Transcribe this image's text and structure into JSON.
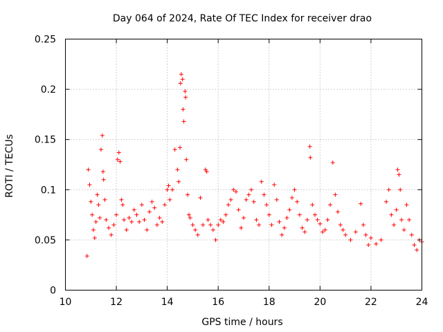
{
  "chart_data": {
    "type": "scatter",
    "title": "Day 064 of 2024, Rate Of TEC Index for receiver drao",
    "xlabel": "GPS time / hours",
    "ylabel": "ROTI / TECUs",
    "xlim": [
      10,
      24
    ],
    "ylim": [
      0,
      0.25
    ],
    "xticks": [
      10,
      12,
      14,
      16,
      18,
      20,
      22,
      24
    ],
    "xtick_labels": [
      "10",
      "12",
      "14",
      "16",
      "18",
      "20",
      "22",
      "24"
    ],
    "yticks": [
      0,
      0.05,
      0.1,
      0.15,
      0.2,
      0.25
    ],
    "ytick_labels": [
      "0",
      "0.05",
      "0.1",
      "0.15",
      "0.2",
      "0.25"
    ],
    "grid": true,
    "marker": "+",
    "color": "#ff0000",
    "series": [
      {
        "name": "ROTI",
        "points": [
          [
            10.85,
            0.034
          ],
          [
            10.9,
            0.12
          ],
          [
            10.95,
            0.105
          ],
          [
            11.0,
            0.088
          ],
          [
            11.05,
            0.075
          ],
          [
            11.1,
            0.06
          ],
          [
            11.15,
            0.052
          ],
          [
            11.2,
            0.068
          ],
          [
            11.25,
            0.095
          ],
          [
            11.3,
            0.085
          ],
          [
            11.35,
            0.072
          ],
          [
            11.4,
            0.14
          ],
          [
            11.45,
            0.154
          ],
          [
            11.48,
            0.118
          ],
          [
            11.5,
            0.11
          ],
          [
            11.55,
            0.09
          ],
          [
            11.6,
            0.07
          ],
          [
            11.7,
            0.062
          ],
          [
            11.8,
            0.055
          ],
          [
            11.9,
            0.065
          ],
          [
            12.0,
            0.075
          ],
          [
            12.05,
            0.13
          ],
          [
            12.1,
            0.137
          ],
          [
            12.15,
            0.128
          ],
          [
            12.2,
            0.09
          ],
          [
            12.25,
            0.085
          ],
          [
            12.3,
            0.07
          ],
          [
            12.4,
            0.06
          ],
          [
            12.5,
            0.072
          ],
          [
            12.6,
            0.068
          ],
          [
            12.7,
            0.08
          ],
          [
            12.8,
            0.075
          ],
          [
            12.9,
            0.068
          ],
          [
            13.0,
            0.085
          ],
          [
            13.1,
            0.07
          ],
          [
            13.2,
            0.06
          ],
          [
            13.3,
            0.078
          ],
          [
            13.4,
            0.088
          ],
          [
            13.5,
            0.082
          ],
          [
            13.6,
            0.065
          ],
          [
            13.7,
            0.072
          ],
          [
            13.8,
            0.068
          ],
          [
            13.9,
            0.085
          ],
          [
            14.0,
            0.1
          ],
          [
            14.05,
            0.104
          ],
          [
            14.1,
            0.09
          ],
          [
            14.2,
            0.1
          ],
          [
            14.3,
            0.14
          ],
          [
            14.4,
            0.12
          ],
          [
            14.45,
            0.108
          ],
          [
            14.5,
            0.142
          ],
          [
            14.52,
            0.206
          ],
          [
            14.55,
            0.215
          ],
          [
            14.6,
            0.21
          ],
          [
            14.62,
            0.18
          ],
          [
            14.65,
            0.168
          ],
          [
            14.7,
            0.198
          ],
          [
            14.72,
            0.192
          ],
          [
            14.75,
            0.13
          ],
          [
            14.8,
            0.095
          ],
          [
            14.85,
            0.075
          ],
          [
            14.9,
            0.072
          ],
          [
            15.0,
            0.065
          ],
          [
            15.1,
            0.06
          ],
          [
            15.2,
            0.055
          ],
          [
            15.3,
            0.092
          ],
          [
            15.4,
            0.065
          ],
          [
            15.5,
            0.12
          ],
          [
            15.55,
            0.118
          ],
          [
            15.6,
            0.07
          ],
          [
            15.7,
            0.065
          ],
          [
            15.8,
            0.06
          ],
          [
            15.9,
            0.05
          ],
          [
            16.0,
            0.065
          ],
          [
            16.1,
            0.07
          ],
          [
            16.2,
            0.068
          ],
          [
            16.3,
            0.075
          ],
          [
            16.4,
            0.085
          ],
          [
            16.5,
            0.09
          ],
          [
            16.6,
            0.1
          ],
          [
            16.7,
            0.098
          ],
          [
            16.8,
            0.08
          ],
          [
            16.9,
            0.062
          ],
          [
            17.0,
            0.072
          ],
          [
            17.1,
            0.09
          ],
          [
            17.2,
            0.095
          ],
          [
            17.3,
            0.1
          ],
          [
            17.4,
            0.088
          ],
          [
            17.5,
            0.07
          ],
          [
            17.6,
            0.065
          ],
          [
            17.7,
            0.108
          ],
          [
            17.8,
            0.095
          ],
          [
            17.9,
            0.085
          ],
          [
            18.0,
            0.075
          ],
          [
            18.1,
            0.065
          ],
          [
            18.2,
            0.105
          ],
          [
            18.3,
            0.09
          ],
          [
            18.4,
            0.068
          ],
          [
            18.5,
            0.055
          ],
          [
            18.6,
            0.062
          ],
          [
            18.7,
            0.072
          ],
          [
            18.8,
            0.08
          ],
          [
            18.9,
            0.092
          ],
          [
            19.0,
            0.1
          ],
          [
            19.1,
            0.088
          ],
          [
            19.2,
            0.075
          ],
          [
            19.3,
            0.062
          ],
          [
            19.4,
            0.058
          ],
          [
            19.5,
            0.07
          ],
          [
            19.6,
            0.143
          ],
          [
            19.62,
            0.132
          ],
          [
            19.7,
            0.085
          ],
          [
            19.8,
            0.075
          ],
          [
            19.9,
            0.07
          ],
          [
            20.0,
            0.066
          ],
          [
            20.1,
            0.058
          ],
          [
            20.2,
            0.06
          ],
          [
            20.3,
            0.07
          ],
          [
            20.4,
            0.085
          ],
          [
            20.5,
            0.127
          ],
          [
            20.6,
            0.095
          ],
          [
            20.7,
            0.078
          ],
          [
            20.8,
            0.065
          ],
          [
            20.9,
            0.06
          ],
          [
            21.0,
            0.055
          ],
          [
            21.2,
            0.05
          ],
          [
            21.4,
            0.058
          ],
          [
            21.6,
            0.086
          ],
          [
            21.7,
            0.065
          ],
          [
            21.8,
            0.055
          ],
          [
            21.9,
            0.045
          ],
          [
            22.0,
            0.052
          ],
          [
            22.2,
            0.046
          ],
          [
            22.4,
            0.05
          ],
          [
            22.6,
            0.088
          ],
          [
            22.7,
            0.1
          ],
          [
            22.8,
            0.075
          ],
          [
            22.9,
            0.065
          ],
          [
            23.0,
            0.08
          ],
          [
            23.05,
            0.12
          ],
          [
            23.1,
            0.115
          ],
          [
            23.15,
            0.1
          ],
          [
            23.2,
            0.07
          ],
          [
            23.3,
            0.06
          ],
          [
            23.4,
            0.085
          ],
          [
            23.5,
            0.07
          ],
          [
            23.6,
            0.055
          ],
          [
            23.7,
            0.045
          ],
          [
            23.8,
            0.04
          ],
          [
            23.9,
            0.05
          ],
          [
            24.0,
            0.048
          ]
        ]
      }
    ]
  }
}
